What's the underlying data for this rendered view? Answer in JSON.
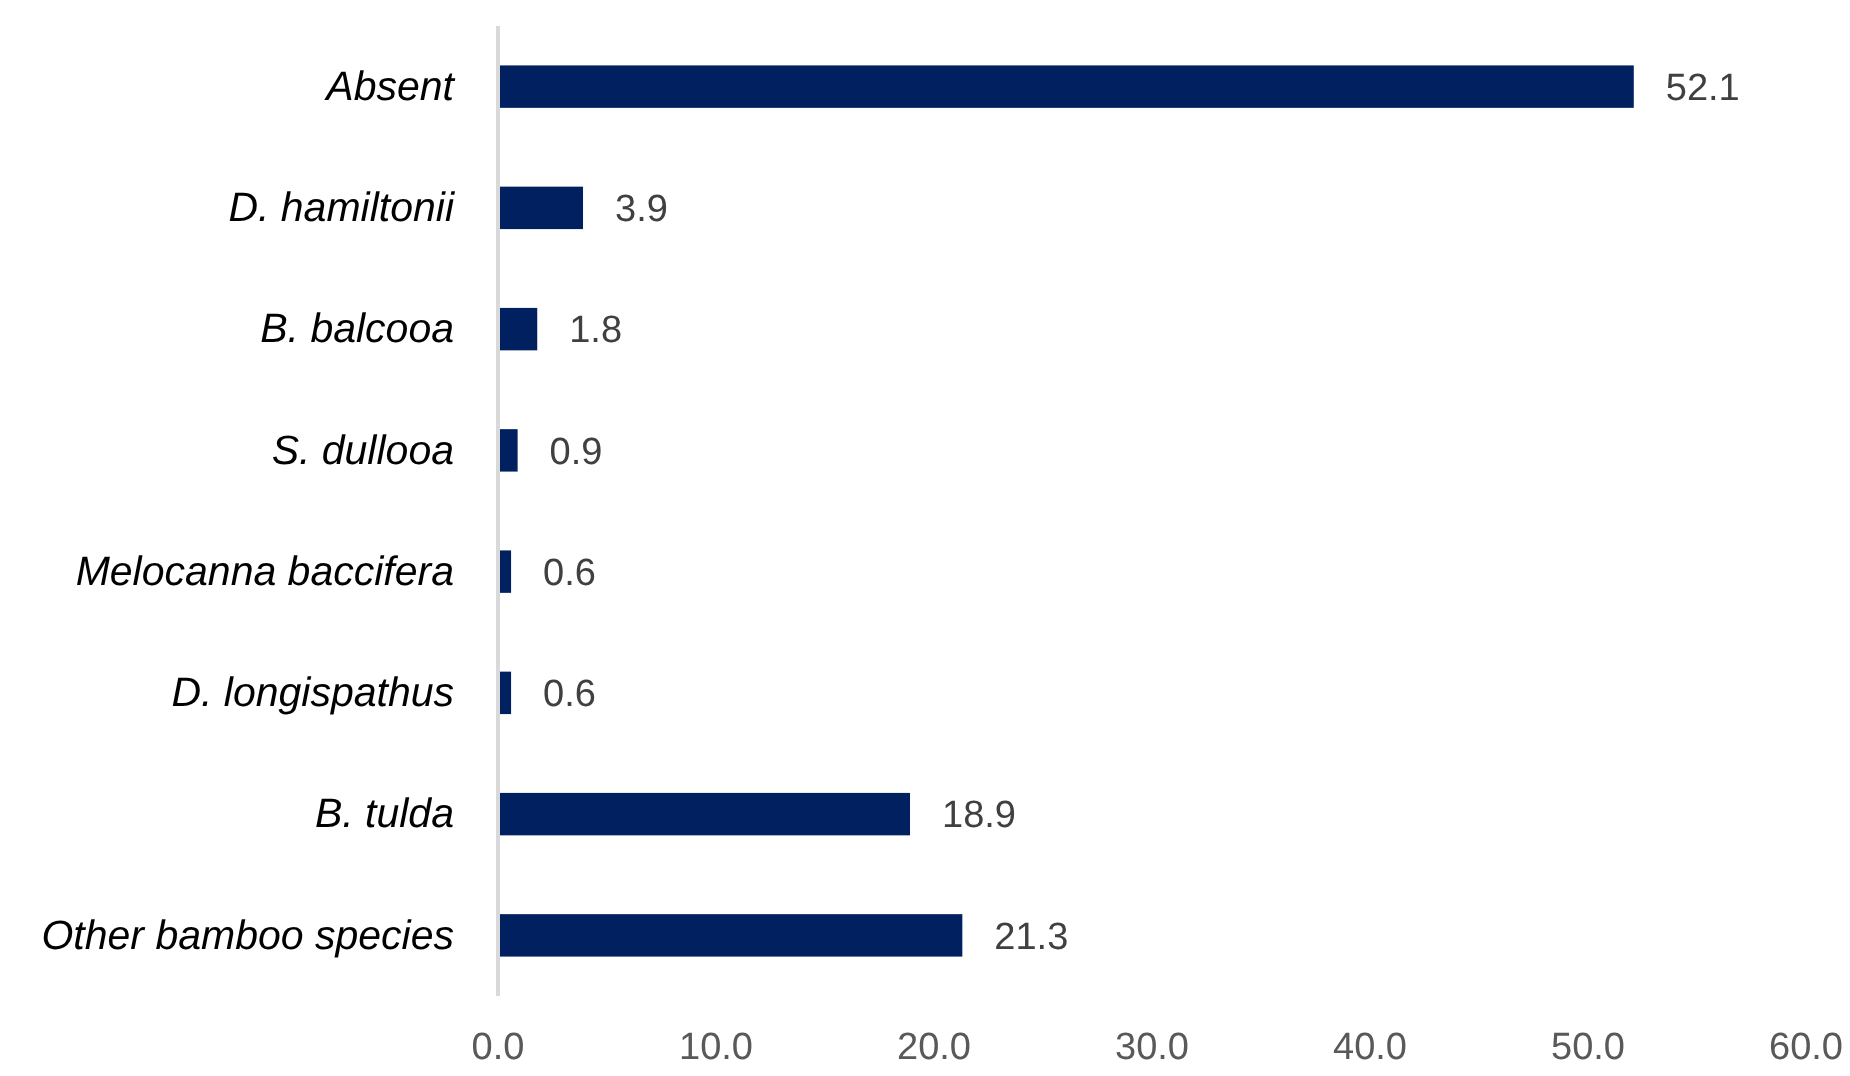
{
  "chart_data": {
    "type": "bar",
    "orientation": "horizontal",
    "categories": [
      "Absent",
      "D. hamiltonii",
      "B. balcooa",
      "S. dullooa",
      "Melocanna baccifera",
      "D. longispathus",
      "B. tulda",
      "Other bamboo species"
    ],
    "values": [
      52.1,
      3.9,
      1.8,
      0.9,
      0.6,
      0.6,
      18.9,
      21.3
    ],
    "color": "#002060",
    "xlim": [
      0,
      60
    ],
    "xticks": [
      {
        "value": 0,
        "label": "0.0"
      },
      {
        "value": 10,
        "label": "10.0"
      },
      {
        "value": 20,
        "label": "20.0"
      },
      {
        "value": 30,
        "label": "30.0"
      },
      {
        "value": 40,
        "label": "40.0"
      },
      {
        "value": 50,
        "label": "50.0"
      },
      {
        "value": 60,
        "label": "60.0"
      }
    ],
    "data_labels": true,
    "grid": false
  }
}
